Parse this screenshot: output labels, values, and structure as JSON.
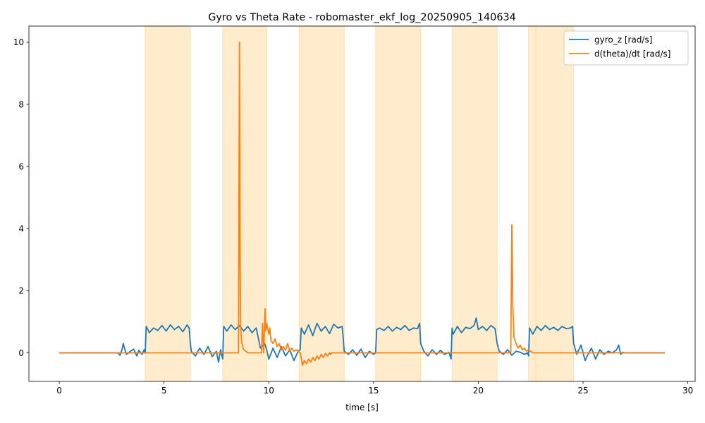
{
  "chart_data": {
    "type": "line",
    "title": "Gyro vs Theta Rate - robomaster_ekf_log_20250905_140634",
    "xlabel": "time [s]",
    "ylabel": "",
    "xlim": [
      -1.45,
      30.35
    ],
    "ylim": [
      -0.92,
      10.52
    ],
    "x_ticks": [
      0,
      5,
      10,
      15,
      20,
      25,
      30
    ],
    "x_tick_labels": [
      "0",
      "5",
      "10",
      "15",
      "20",
      "25",
      "30"
    ],
    "y_ticks": [
      0,
      2,
      4,
      6,
      8,
      10
    ],
    "y_tick_labels": [
      "0",
      "2",
      "4",
      "6",
      "8",
      "10"
    ],
    "grid": false,
    "legend_position": "upper-right",
    "shaded_intervals": [
      [
        4.1,
        6.25
      ],
      [
        7.8,
        9.9
      ],
      [
        11.45,
        13.6
      ],
      [
        15.1,
        17.25
      ],
      [
        18.75,
        20.9
      ],
      [
        22.4,
        22.75
      ],
      [
        22.75,
        24.55
      ]
    ],
    "shade_color": "#ffeccc",
    "series": [
      {
        "name": "gyro_z [rad/s]",
        "color": "#1f77b4",
        "x": [
          0,
          2.8,
          2.9,
          3.0,
          3.05,
          3.2,
          3.4,
          3.55,
          3.7,
          3.8,
          3.95,
          4.05,
          4.1,
          4.15,
          4.3,
          4.5,
          4.7,
          4.9,
          5.1,
          5.3,
          5.5,
          5.7,
          5.9,
          6.1,
          6.2,
          6.25,
          6.3,
          6.5,
          6.7,
          6.9,
          7.1,
          7.3,
          7.5,
          7.6,
          7.7,
          7.8,
          7.85,
          8.0,
          8.2,
          8.4,
          8.6,
          8.8,
          9.0,
          9.2,
          9.4,
          9.6,
          9.8,
          9.9,
          10.0,
          10.2,
          10.4,
          10.6,
          10.8,
          11.0,
          11.2,
          11.4,
          11.5,
          11.55,
          11.7,
          11.9,
          12.1,
          12.3,
          12.5,
          12.7,
          12.9,
          13.1,
          13.3,
          13.5,
          13.55,
          13.6,
          13.8,
          14.0,
          14.2,
          14.4,
          14.6,
          14.8,
          15.0,
          15.1,
          15.15,
          15.3,
          15.5,
          15.7,
          15.9,
          16.1,
          16.3,
          16.5,
          16.7,
          16.9,
          17.1,
          17.2,
          17.25,
          17.4,
          17.6,
          17.8,
          18.0,
          18.2,
          18.4,
          18.6,
          18.7,
          18.75,
          18.8,
          19.0,
          19.2,
          19.4,
          19.6,
          19.8,
          19.9,
          20.0,
          20.2,
          20.4,
          20.6,
          20.8,
          20.9,
          21.0,
          21.2,
          21.4,
          21.6,
          21.8,
          22.0,
          22.2,
          22.35,
          22.4,
          22.45,
          22.6,
          22.8,
          23.0,
          23.2,
          23.4,
          23.6,
          23.8,
          24.0,
          24.2,
          24.4,
          24.5,
          24.55,
          24.7,
          24.9,
          25.1,
          25.2,
          25.4,
          25.6,
          25.8,
          26.0,
          26.2,
          26.4,
          26.6,
          26.7,
          26.8,
          26.9,
          27.0,
          27.5,
          28.0,
          28.5,
          28.9
        ],
        "values": [
          0.0,
          0.0,
          -0.08,
          0.12,
          0.3,
          -0.05,
          0.05,
          0.12,
          -0.1,
          0.08,
          -0.05,
          0.1,
          0.0,
          0.85,
          0.65,
          0.8,
          0.72,
          0.88,
          0.7,
          0.9,
          0.75,
          0.85,
          0.68,
          0.9,
          0.8,
          0.35,
          0.05,
          -0.1,
          0.15,
          -0.05,
          0.2,
          -0.12,
          0.05,
          -0.3,
          0.1,
          -0.2,
          0.85,
          0.7,
          0.9,
          0.75,
          0.88,
          0.7,
          0.85,
          0.65,
          0.8,
          0.15,
          0.3,
          0.1,
          -0.2,
          0.15,
          -0.15,
          0.2,
          -0.1,
          0.1,
          -0.25,
          0.05,
          0.1,
          0.8,
          0.6,
          0.9,
          0.55,
          0.95,
          0.7,
          0.85,
          0.62,
          0.92,
          0.8,
          0.85,
          0.5,
          0.05,
          -0.05,
          0.1,
          -0.08,
          0.12,
          -0.15,
          0.05,
          -0.05,
          0.0,
          0.75,
          0.8,
          0.72,
          0.85,
          0.7,
          0.82,
          0.75,
          0.88,
          0.72,
          0.8,
          0.78,
          0.95,
          0.3,
          0.05,
          -0.1,
          0.1,
          -0.05,
          0.08,
          -0.05,
          0.02,
          -0.2,
          0.8,
          0.6,
          0.85,
          0.65,
          0.82,
          0.78,
          0.88,
          1.12,
          0.75,
          0.85,
          0.72,
          0.88,
          0.78,
          0.3,
          0.05,
          -0.05,
          0.1,
          -0.08,
          0.05,
          0.02,
          -0.05,
          0.0,
          -0.1,
          0.8,
          0.6,
          0.85,
          0.72,
          0.88,
          0.75,
          0.82,
          0.72,
          0.85,
          0.78,
          0.8,
          0.85,
          0.3,
          -0.05,
          0.25,
          -0.25,
          -0.1,
          0.15,
          -0.2,
          0.1,
          -0.05,
          0.05,
          0.0,
          0.1,
          0.25,
          -0.05,
          0.02,
          0.0,
          0.0,
          0.0,
          0.0,
          0.0
        ]
      },
      {
        "name": "d(theta)/dt [rad/s]",
        "color": "#ff7f0e",
        "x": [
          0,
          8.55,
          8.6,
          8.63,
          8.66,
          8.7,
          8.8,
          9.0,
          9.5,
          9.65,
          9.7,
          9.75,
          9.8,
          9.82,
          9.85,
          9.9,
          10.0,
          10.05,
          10.1,
          10.2,
          10.3,
          10.4,
          10.5,
          10.6,
          10.7,
          10.8,
          10.9,
          11.0,
          11.1,
          11.2,
          11.3,
          11.4,
          11.5,
          11.55,
          11.6,
          11.7,
          11.8,
          11.9,
          12.0,
          12.1,
          12.2,
          12.3,
          12.4,
          12.5,
          12.6,
          12.7,
          12.8,
          12.9,
          12.95,
          13.0,
          13.5,
          21.55,
          21.6,
          21.65,
          21.7,
          21.8,
          21.9,
          22.0,
          22.1,
          22.2,
          22.3,
          22.4,
          22.6,
          24.0,
          28.9
        ],
        "values": [
          0.0,
          0.0,
          10.0,
          3.0,
          0.8,
          0.35,
          0.1,
          0.0,
          0.0,
          0.0,
          0.95,
          0.0,
          0.9,
          1.42,
          0.7,
          0.95,
          0.6,
          0.8,
          0.4,
          0.3,
          0.45,
          0.2,
          0.3,
          0.1,
          0.2,
          0.08,
          0.3,
          0.05,
          0.15,
          0.05,
          0.1,
          0.05,
          0.0,
          -0.15,
          -0.4,
          -0.25,
          -0.35,
          -0.2,
          -0.3,
          -0.15,
          -0.25,
          -0.1,
          -0.2,
          -0.05,
          -0.15,
          -0.02,
          -0.1,
          0.0,
          -0.05,
          0.0,
          0.0,
          0.0,
          4.12,
          1.5,
          0.5,
          0.3,
          0.15,
          0.25,
          0.1,
          0.15,
          0.05,
          0.1,
          0.0,
          0.0,
          0.0
        ]
      }
    ]
  }
}
